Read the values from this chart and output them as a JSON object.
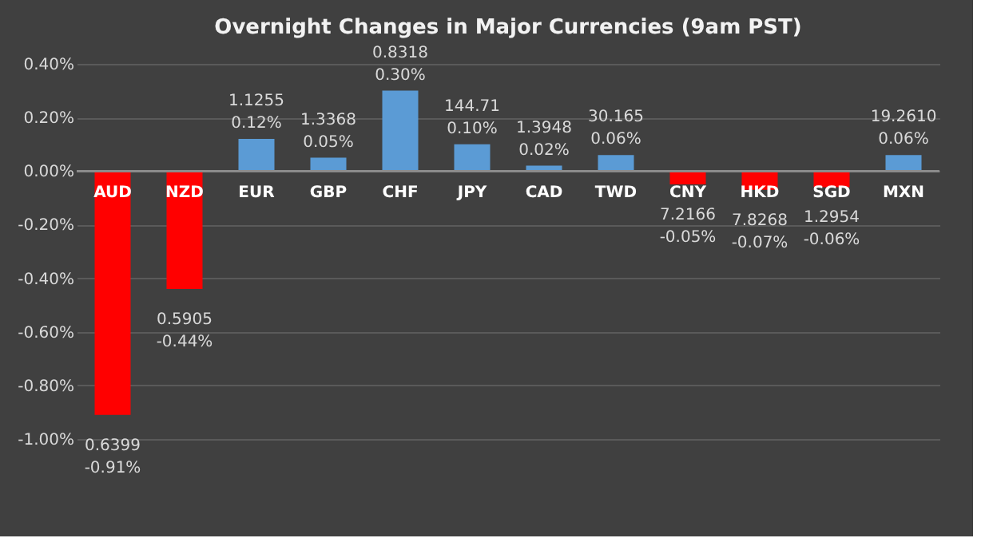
{
  "chart_data": {
    "type": "bar",
    "title": "Overnight Changes in Major Currencies (9am PST)",
    "categories": [
      "AUD",
      "NZD",
      "EUR",
      "GBP",
      "CHF",
      "JPY",
      "CAD",
      "TWD",
      "CNY",
      "HKD",
      "SGD",
      "MXN"
    ],
    "values": [
      -0.91,
      -0.44,
      0.12,
      0.05,
      0.3,
      0.1,
      0.02,
      0.06,
      -0.05,
      -0.07,
      -0.06,
      0.06
    ],
    "colors": [
      "#ff0000",
      "#ff0000",
      "#5b9bd5",
      "#5b9bd5",
      "#5b9bd5",
      "#5b9bd5",
      "#5b9bd5",
      "#5b9bd5",
      "#ff0000",
      "#ff0000",
      "#ff0000",
      "#5b9bd5"
    ],
    "value_labels": [
      "0.6399\n-0.91%",
      "0.5905\n-0.44%",
      "1.1255\n0.12%",
      "1.3368\n0.05%",
      "0.8318\n0.30%",
      "144.71\n0.10%",
      "1.3948\n0.02%",
      "30.165\n0.06%",
      "7.2166\n-0.05%",
      "7.8268\n-0.07%",
      "1.2954\n-0.06%",
      "19.2610\n0.06%"
    ],
    "ylim": [
      -1.0,
      0.4
    ],
    "yticks": [
      {
        "value": -1.0,
        "label": "-1.00%"
      },
      {
        "value": -0.8,
        "label": "-0.80%"
      },
      {
        "value": -0.6,
        "label": "-0.60%"
      },
      {
        "value": -0.4,
        "label": "-0.40%"
      },
      {
        "value": -0.2,
        "label": "-0.20%"
      },
      {
        "value": 0,
        "label": "0.00%"
      },
      {
        "value": 0.2,
        "label": "0.20%"
      },
      {
        "value": 0.4,
        "label": "0.40%"
      }
    ],
    "grid": "y"
  }
}
